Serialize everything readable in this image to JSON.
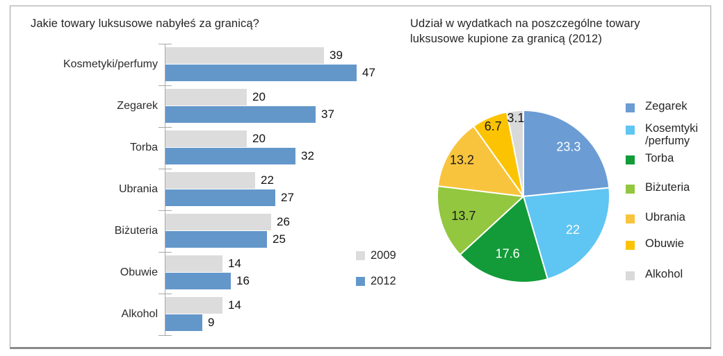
{
  "panel": {
    "border_color": "#9e9e9e"
  },
  "chart_data": [
    {
      "type": "bar",
      "orientation": "horizontal",
      "title": "Jakie towary luksusowe nabyłeś za granicą?",
      "categories": [
        "Kosmetyki/perfumy",
        "Zegarek",
        "Torba",
        "Ubrania",
        "Biżuteria",
        "Obuwie",
        "Alkohol"
      ],
      "series": [
        {
          "name": "2009",
          "color": "#dcdcdc",
          "values": [
            39,
            20,
            20,
            22,
            26,
            14,
            14
          ]
        },
        {
          "name": "2012",
          "color": "#6397ca",
          "values": [
            47,
            37,
            32,
            27,
            25,
            16,
            9
          ]
        }
      ],
      "xlim": [
        0,
        47
      ],
      "grid": false,
      "value_labels": true,
      "legend_position": "right-center",
      "axis_color": "#a8a8a8"
    },
    {
      "type": "pie",
      "title": "Udział w wydatkach na poszczególne towary luksusowe kupione za granicą (2012)",
      "title_lines": [
        "Udział w wydatkach na poszczególne towary",
        "luksusowe kupione za granicą (2012)"
      ],
      "start_angle_deg": 0,
      "direction": "clockwise",
      "legend_position": "right",
      "slices": [
        {
          "label": "Zegarek",
          "legend_label": "Zegarek",
          "value": 23.3,
          "color": "#6b9cd4",
          "label_color": "#ffffff"
        },
        {
          "label": "Kosemtyki/perfumy",
          "legend_label": "Kosemtyki\n/perfumy",
          "value": 22,
          "color": "#5fc5f3",
          "label_color": "#ffffff"
        },
        {
          "label": "Torba",
          "legend_label": "Torba",
          "value": 17.6,
          "color": "#129b38",
          "label_color": "#ffffff"
        },
        {
          "label": "Biżuteria",
          "legend_label": "Biżuteria",
          "value": 13.7,
          "color": "#92c73f",
          "label_color": "#1a1a1a"
        },
        {
          "label": "Ubrania",
          "legend_label": "Ubrania",
          "value": 13.2,
          "color": "#f9c43d",
          "label_color": "#1a1a1a"
        },
        {
          "label": "Obuwie",
          "legend_label": "Obuwie",
          "value": 6.7,
          "color": "#fcc303",
          "label_color": "#1a1a1a"
        },
        {
          "label": "Alkohol",
          "legend_label": "Alkohol",
          "value": 3.1,
          "color": "#d9d9d9",
          "label_color": "#1a1a1a"
        }
      ]
    }
  ]
}
